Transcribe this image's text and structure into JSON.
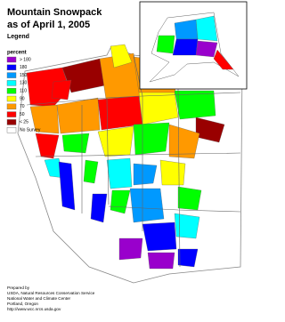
{
  "header": {
    "title_lines": [
      "Mountain Snowpack",
      "as of April 1, 2005"
    ],
    "legend_title": "Legend",
    "unit": "percent"
  },
  "legend": {
    "items": [
      {
        "label": "> 180",
        "color": "#9900cc"
      },
      {
        "label": "180",
        "color": "#0000ff"
      },
      {
        "label": "150",
        "color": "#0099ff"
      },
      {
        "label": "130",
        "color": "#00ffff"
      },
      {
        "label": "110",
        "color": "#00ff00"
      },
      {
        "label": "90",
        "color": "#ffff00"
      },
      {
        "label": "70",
        "color": "#ff9900"
      },
      {
        "label": "50",
        "color": "#ff0000"
      },
      {
        "label": "< 25",
        "color": "#990000"
      },
      {
        "label": "No Survey",
        "color": "#ffffff"
      }
    ]
  },
  "footer": {
    "lines": [
      "Prepared by",
      "USDA, Natural Resources Conservation Service",
      "National Water and Climate Center",
      "Portland, Oregon",
      "http://www.wcc.nrcs.usda.gov"
    ]
  }
}
